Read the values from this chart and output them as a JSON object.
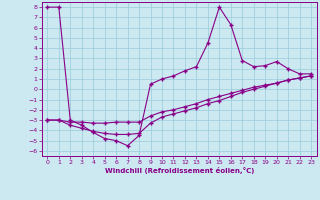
{
  "xlabel": "Windchill (Refroidissement éolien,°C)",
  "xlim": [
    -0.5,
    23.5
  ],
  "ylim": [
    -6.5,
    8.5
  ],
  "xticks": [
    0,
    1,
    2,
    3,
    4,
    5,
    6,
    7,
    8,
    9,
    10,
    11,
    12,
    13,
    14,
    15,
    16,
    17,
    18,
    19,
    20,
    21,
    22,
    23
  ],
  "yticks": [
    8,
    7,
    6,
    5,
    4,
    3,
    2,
    1,
    0,
    -1,
    -2,
    -3,
    -4,
    -5,
    -6
  ],
  "bg_color": "#cce8f0",
  "line_color": "#880088",
  "grid_color": "#99ccdd",
  "line1_x": [
    0,
    1,
    2,
    3,
    4,
    5,
    6,
    7,
    8,
    9,
    10,
    11,
    12,
    13,
    14,
    15,
    16,
    17,
    18,
    19,
    20,
    21,
    22,
    23
  ],
  "line1_y": [
    8,
    8,
    -3,
    -3.5,
    -4.2,
    -4.8,
    -5.0,
    -5.5,
    -4.5,
    0.5,
    1.0,
    1.3,
    1.8,
    2.2,
    4.5,
    8.0,
    6.3,
    2.8,
    2.2,
    2.3,
    2.7,
    2.0,
    1.5,
    1.5
  ],
  "line2_x": [
    0,
    1,
    2,
    3,
    4,
    5,
    6,
    7,
    8,
    9,
    10,
    11,
    12,
    13,
    14,
    15,
    16,
    17,
    18,
    19,
    20,
    21,
    22,
    23
  ],
  "line2_y": [
    -3.0,
    -3.0,
    -3.2,
    -3.2,
    -3.3,
    -3.3,
    -3.2,
    -3.2,
    -3.2,
    -2.6,
    -2.2,
    -2.0,
    -1.7,
    -1.4,
    -1.0,
    -0.7,
    -0.4,
    -0.1,
    0.2,
    0.4,
    0.6,
    0.9,
    1.1,
    1.3
  ],
  "line3_x": [
    0,
    1,
    2,
    3,
    4,
    5,
    6,
    7,
    8,
    9,
    10,
    11,
    12,
    13,
    14,
    15,
    16,
    17,
    18,
    19,
    20,
    21,
    22,
    23
  ],
  "line3_y": [
    -3.0,
    -3.0,
    -3.5,
    -3.8,
    -4.1,
    -4.3,
    -4.4,
    -4.4,
    -4.3,
    -3.3,
    -2.7,
    -2.4,
    -2.1,
    -1.8,
    -1.4,
    -1.1,
    -0.7,
    -0.3,
    0.0,
    0.3,
    0.6,
    0.9,
    1.1,
    1.3
  ]
}
